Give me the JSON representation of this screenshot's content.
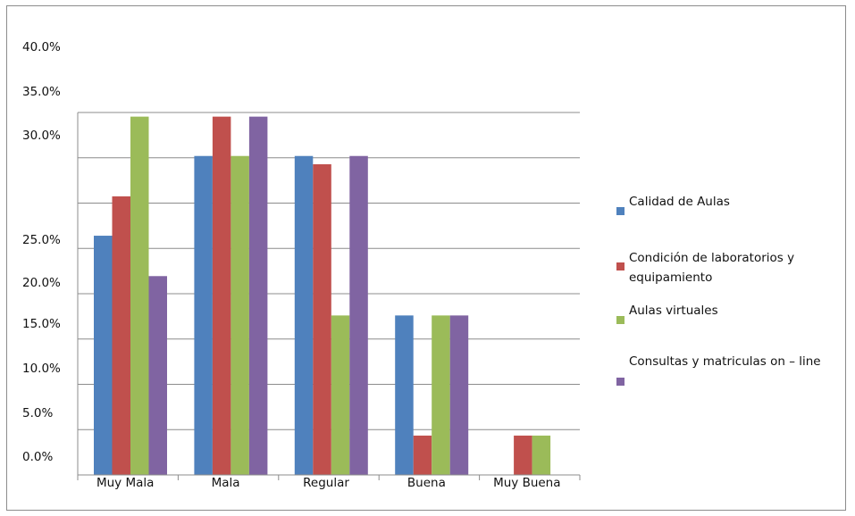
{
  "chart_data": {
    "type": "bar",
    "categories": [
      "Muy Mala",
      "Mala",
      "Regular",
      "Buena",
      "Muy Buena"
    ],
    "series": [
      {
        "name": "Calidad de Aulas",
        "color": "#4f81bd",
        "values": [
          23.1,
          30.8,
          30.8,
          15.4,
          0
        ]
      },
      {
        "name": "Condición de laboratorios y equipamiento",
        "color": "#c0504d",
        "values": [
          26.9,
          34.6,
          30.0,
          3.8,
          3.8
        ]
      },
      {
        "name": "Aulas virtuales",
        "color": "#9bbb59",
        "values": [
          34.6,
          30.8,
          15.4,
          15.4,
          3.8
        ]
      },
      {
        "name": "Consultas y matriculas on – line",
        "color": "#8064a2",
        "values": [
          19.2,
          34.6,
          30.8,
          15.4,
          0
        ]
      }
    ],
    "y_tick_labels": [
      "40.0%",
      "35.0%",
      "30.0%",
      "25.0%",
      "20.0%",
      "15.0%",
      "10.0%",
      "5.0%",
      "0.0%"
    ],
    "legend_lines": [
      [
        "Calidad de Aulas"
      ],
      [
        "Condición de   laboratorios y",
        "equipamiento"
      ],
      [
        "Aulas virtuales"
      ],
      [
        "Consultas y matriculas on – line"
      ]
    ],
    "grid": true,
    "legend_position": "right"
  }
}
